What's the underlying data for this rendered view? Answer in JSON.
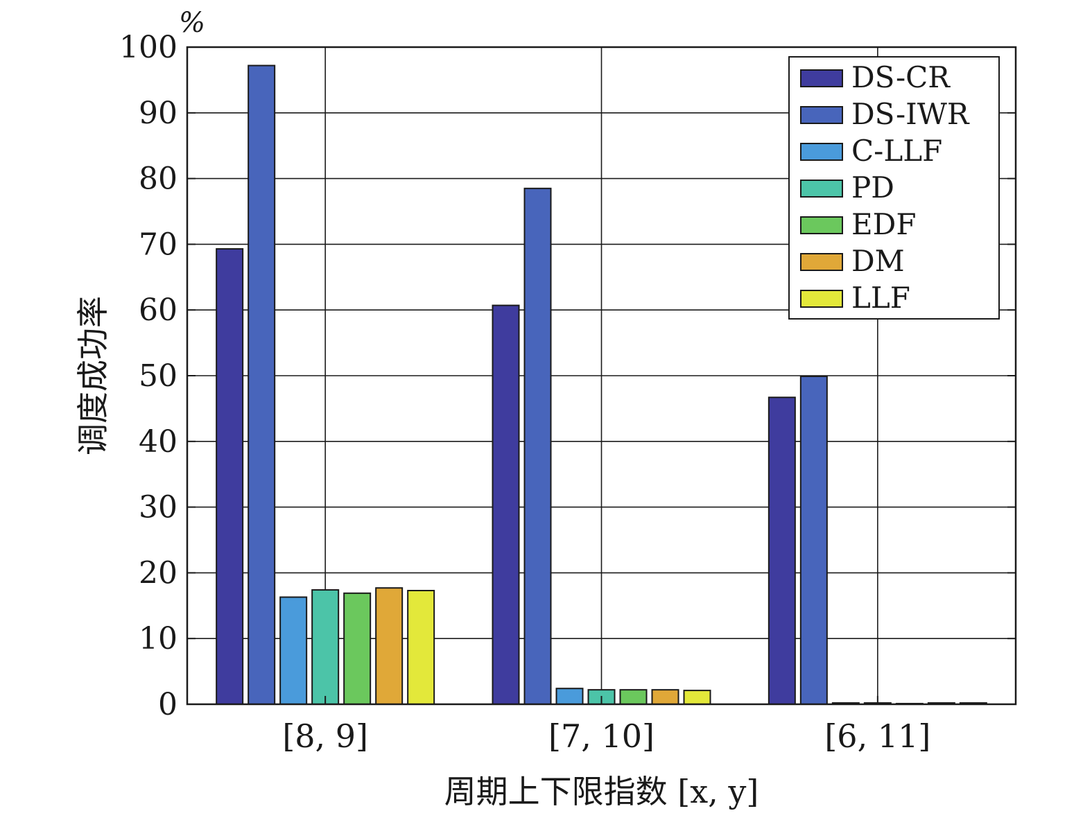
{
  "chart_data": {
    "type": "bar",
    "unit_label": "%",
    "ylabel": "调度成功率",
    "xlabel": "周期上下限指数 [x, y]",
    "categories": [
      "[8, 9]",
      "[7, 10]",
      "[6, 11]"
    ],
    "ylim": [
      0,
      100
    ],
    "yticks": [
      0,
      10,
      20,
      30,
      40,
      50,
      60,
      70,
      80,
      90,
      100
    ],
    "grid": true,
    "legend_position": "top-right",
    "series": [
      {
        "name": "DS-CR",
        "color": "#3f3c9e",
        "values": [
          69.3,
          60.7,
          46.7
        ]
      },
      {
        "name": "DS-IWR",
        "color": "#4865bb",
        "values": [
          97.2,
          78.5,
          49.9
        ]
      },
      {
        "name": "C-LLF",
        "color": "#4a9bdb",
        "values": [
          16.3,
          2.4,
          0.2
        ]
      },
      {
        "name": "PD",
        "color": "#4cc4a8",
        "values": [
          17.4,
          2.2,
          0.2
        ]
      },
      {
        "name": "EDF",
        "color": "#6bc85d",
        "values": [
          16.9,
          2.2,
          0.1
        ]
      },
      {
        "name": "DM",
        "color": "#e0a838",
        "values": [
          17.7,
          2.2,
          0.2
        ]
      },
      {
        "name": "LLF",
        "color": "#e3e83a",
        "values": [
          17.3,
          2.1,
          0.2
        ]
      }
    ]
  }
}
